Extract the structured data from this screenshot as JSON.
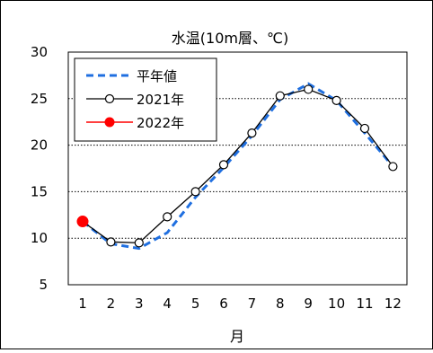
{
  "chart_data": {
    "type": "line",
    "title": "水温(10m層、℃)",
    "xlabel": "月",
    "ylabel": "",
    "categories": [
      "1",
      "2",
      "3",
      "4",
      "5",
      "6",
      "7",
      "8",
      "9",
      "10",
      "11",
      "12"
    ],
    "x": [
      1,
      2,
      3,
      4,
      5,
      6,
      7,
      8,
      9,
      10,
      11,
      12
    ],
    "ylim": [
      5,
      30
    ],
    "yticks": [
      "5",
      "10",
      "15",
      "20",
      "25",
      "30"
    ],
    "grid": "horizontal dotted",
    "legend": "top-left inside plot",
    "series": [
      {
        "name": "平年値",
        "color": "#1f6fe0",
        "style": "dashed",
        "values": [
          11.8,
          9.4,
          8.9,
          10.6,
          14.4,
          17.6,
          21.0,
          24.9,
          26.6,
          24.8,
          21.3,
          17.7
        ]
      },
      {
        "name": "2021年",
        "color": "#000000",
        "style": "solid-open-markers",
        "values": [
          11.8,
          9.6,
          9.5,
          12.3,
          15.0,
          17.9,
          21.3,
          25.3,
          26.0,
          24.8,
          21.8,
          17.7
        ]
      },
      {
        "name": "2022年",
        "color": "#ff0000",
        "style": "solid-filled-markers",
        "values": [
          11.8,
          null,
          null,
          null,
          null,
          null,
          null,
          null,
          null,
          null,
          null,
          null
        ]
      }
    ]
  }
}
